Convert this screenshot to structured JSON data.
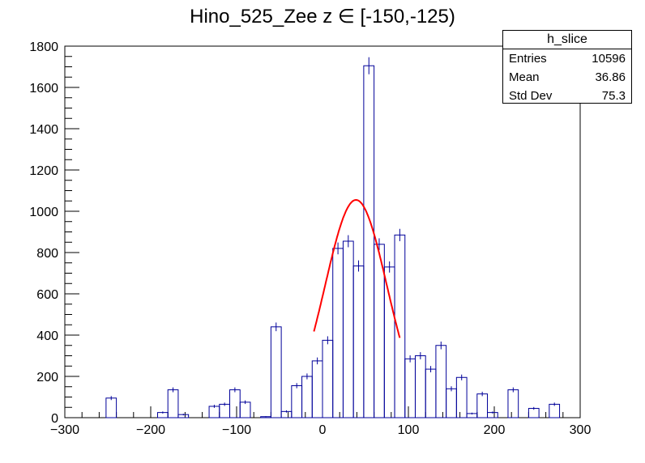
{
  "title": "Hino_525_Zee z  ∈ [-150,-125)",
  "stats": {
    "name": "h_slice",
    "rows": [
      {
        "label": "Entries",
        "value": "10596"
      },
      {
        "label": "Mean",
        "value": "36.86"
      },
      {
        "label": "Std Dev",
        "value": "75.3"
      }
    ]
  },
  "colors": {
    "histogram": "#000099",
    "fit": "#ff0000"
  },
  "chart_data": {
    "type": "histogram",
    "xlim": [
      -300,
      300
    ],
    "ylim": [
      0,
      1800
    ],
    "xticks": [
      "−300",
      "−200",
      "−100",
      "0",
      "100",
      "200",
      "300"
    ],
    "yticks": [
      "0",
      "200",
      "400",
      "600",
      "800",
      "1000",
      "1200",
      "1400",
      "1600",
      "1800"
    ],
    "bin_width": 12,
    "bin_low": [
      -300,
      -288,
      -276,
      -264,
      -252,
      -240,
      -228,
      -216,
      -204,
      -192,
      -180,
      -168,
      -156,
      -144,
      -132,
      -120,
      -108,
      -96,
      -84,
      -72,
      -60,
      -48,
      -36,
      -24,
      -12,
      0,
      12,
      24,
      36,
      48,
      60,
      72,
      84,
      96,
      108,
      120,
      132,
      144,
      156,
      168,
      180,
      192,
      204,
      216,
      228,
      240,
      252,
      264,
      276,
      288
    ],
    "values": [
      0,
      0,
      0,
      0,
      95,
      0,
      0,
      0,
      0,
      25,
      135,
      15,
      0,
      0,
      55,
      65,
      135,
      75,
      0,
      5,
      440,
      30,
      155,
      200,
      275,
      375,
      820,
      855,
      735,
      1705,
      840,
      730,
      885,
      285,
      300,
      235,
      350,
      140,
      195,
      20,
      115,
      25,
      0,
      135,
      0,
      45,
      0,
      65,
      0,
      0
    ],
    "fit": {
      "type": "gaussian",
      "amplitude": 1055,
      "mean": 39,
      "sigma": 36,
      "range": [
        -10,
        90
      ]
    }
  }
}
